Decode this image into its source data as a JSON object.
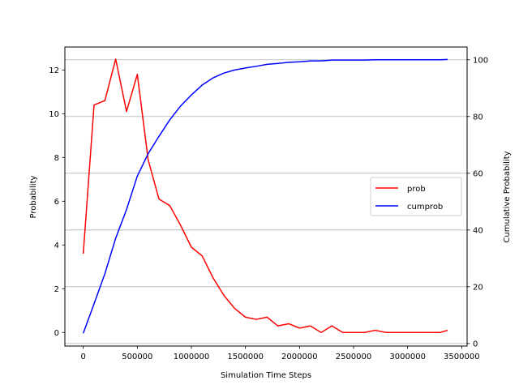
{
  "chart_data": {
    "type": "line",
    "xlabel": "Simulation Time Steps",
    "ylabel_left": "Probability",
    "ylabel_right": "Cumulative Probability",
    "x_ticks": [
      "0",
      "500000",
      "1000000",
      "1500000",
      "2000000",
      "2500000",
      "3000000",
      "3500000"
    ],
    "y_left_ticks": [
      "0",
      "2",
      "4",
      "6",
      "8",
      "10",
      "12"
    ],
    "y_right_ticks": [
      "0",
      "20",
      "40",
      "60",
      "80",
      "100"
    ],
    "xlim": [
      -170000,
      3550000
    ],
    "ylim_left": [
      -0.62,
      13.05
    ],
    "ylim_right": [
      -0.9,
      104.5
    ],
    "grid": "horizontal, right axis",
    "legend_position": "center-right",
    "x": [
      0,
      100000,
      200000,
      300000,
      400000,
      500000,
      600000,
      700000,
      800000,
      900000,
      1000000,
      1100000,
      1200000,
      1300000,
      1400000,
      1500000,
      1600000,
      1700000,
      1800000,
      1900000,
      2000000,
      2100000,
      2200000,
      2300000,
      2400000,
      2500000,
      2600000,
      2700000,
      2800000,
      2900000,
      3000000,
      3100000,
      3200000,
      3300000,
      3370000
    ],
    "series": [
      {
        "name": "prob",
        "color": "#ff0000",
        "axis": "left",
        "values": [
          3.6,
          10.4,
          10.6,
          12.5,
          10.1,
          11.8,
          7.9,
          6.1,
          5.8,
          4.9,
          3.9,
          3.5,
          2.5,
          1.7,
          1.1,
          0.7,
          0.6,
          0.7,
          0.3,
          0.4,
          0.2,
          0.3,
          0.0,
          0.3,
          0.0,
          0.0,
          0.0,
          0.1,
          0.0,
          0.0,
          0.0,
          0.0,
          0.0,
          0.0,
          0.1
        ]
      },
      {
        "name": "cumprob",
        "color": "#0000ff",
        "axis": "right",
        "values": [
          3.6,
          14.0,
          24.6,
          37.1,
          47.2,
          59.0,
          66.9,
          73.0,
          78.8,
          83.7,
          87.6,
          91.1,
          93.6,
          95.3,
          96.4,
          97.1,
          97.7,
          98.4,
          98.7,
          99.1,
          99.3,
          99.6,
          99.6,
          99.9,
          99.9,
          99.9,
          99.9,
          100.0,
          100.0,
          100.0,
          100.0,
          100.0,
          100.0,
          100.0,
          100.1
        ]
      }
    ]
  }
}
